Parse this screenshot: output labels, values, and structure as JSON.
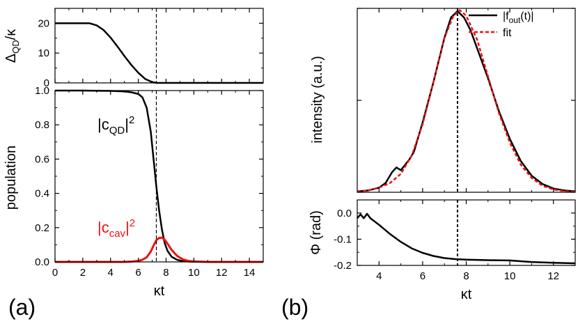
{
  "figure": {
    "label_a": "(a)",
    "label_b": "(b)"
  },
  "chart_data": [
    {
      "id": "a_top",
      "type": "line",
      "ylabel": "Δ_QD/κ",
      "xlim": [
        0,
        15
      ],
      "ylim": [
        0,
        25
      ],
      "yticks": [
        "0",
        "10",
        "20"
      ],
      "vline_x": 7.3,
      "series": [
        {
          "name": "Δ_QD/κ",
          "color": "#000000",
          "x": [
            0,
            1,
            2,
            2.5,
            3,
            3.5,
            4,
            4.5,
            5,
            5.5,
            6,
            6.5,
            7,
            7.3,
            8,
            10,
            15
          ],
          "y": [
            20,
            20,
            20,
            20,
            19.3,
            17.7,
            15.2,
            12.2,
            9.0,
            6.0,
            3.4,
            1.3,
            0.25,
            0,
            0,
            0,
            0
          ]
        }
      ]
    },
    {
      "id": "a_bottom",
      "type": "line",
      "xlabel": "κt",
      "ylabel": "population",
      "xlim": [
        0,
        15
      ],
      "ylim": [
        0,
        1.0
      ],
      "xticks": [
        "0",
        "2",
        "4",
        "6",
        "8",
        "10",
        "12",
        "14"
      ],
      "yticks": [
        "0.0",
        "0.2",
        "0.4",
        "0.6",
        "0.8",
        "1.0"
      ],
      "vline_x": 7.3,
      "annotations": [
        {
          "text_main": "|c",
          "sub": "QD",
          "text_end": "|",
          "sup": "2",
          "color": "#000000"
        },
        {
          "text_main": "|c",
          "sub": "cav",
          "text_end": "|",
          "sup": "2",
          "color": "#ee1111"
        }
      ],
      "series": [
        {
          "name": "|c_QD|^2",
          "color": "#000000",
          "x": [
            0,
            2,
            4,
            5,
            5.5,
            6,
            6.3,
            6.6,
            6.9,
            7.1,
            7.3,
            7.5,
            7.7,
            7.9,
            8.1,
            8.4,
            8.8,
            9.2,
            9.6,
            10,
            11,
            15
          ],
          "y": [
            1.0,
            1.0,
            0.998,
            0.995,
            0.99,
            0.98,
            0.96,
            0.9,
            0.76,
            0.6,
            0.44,
            0.3,
            0.19,
            0.11,
            0.065,
            0.03,
            0.012,
            0.005,
            0.002,
            0.001,
            0,
            0
          ]
        },
        {
          "name": "|c_cav|^2",
          "color": "#ee1111",
          "x": [
            0,
            5,
            5.5,
            6,
            6.3,
            6.6,
            6.9,
            7.1,
            7.3,
            7.5,
            7.7,
            7.9,
            8.1,
            8.4,
            8.8,
            9.2,
            9.6,
            10,
            11,
            15
          ],
          "y": [
            0,
            0,
            0.002,
            0.006,
            0.013,
            0.027,
            0.06,
            0.095,
            0.127,
            0.14,
            0.142,
            0.13,
            0.107,
            0.07,
            0.035,
            0.015,
            0.006,
            0.003,
            0,
            0
          ]
        }
      ]
    },
    {
      "id": "b_top",
      "type": "line",
      "ylabel": "intensity (a.u.)",
      "xlim": [
        3,
        13
      ],
      "ylim": [
        0,
        1.0
      ],
      "vline_x": 7.6,
      "legend": [
        {
          "text": "|f",
          "sub": "out",
          "text_end": "(t)|",
          "style": "solid",
          "color": "#000000"
        },
        {
          "text": "fit",
          "sub": "",
          "text_end": "",
          "style": "dashed",
          "color": "#ee1111"
        }
      ],
      "series": [
        {
          "name": "|f_out(t)|",
          "color": "#000000",
          "x": [
            3,
            3.5,
            4,
            4.3,
            4.6,
            4.8,
            5,
            5.2,
            5.4,
            5.6,
            6,
            6.5,
            7,
            7.3,
            7.6,
            7.9,
            8.2,
            8.6,
            9,
            9.5,
            10,
            10.5,
            11,
            11.5,
            12,
            12.5,
            13
          ],
          "y": [
            0.005,
            0.01,
            0.025,
            0.05,
            0.11,
            0.135,
            0.12,
            0.15,
            0.18,
            0.22,
            0.38,
            0.6,
            0.84,
            0.95,
            0.985,
            0.95,
            0.88,
            0.75,
            0.62,
            0.44,
            0.29,
            0.17,
            0.09,
            0.045,
            0.02,
            0.01,
            0.005
          ]
        },
        {
          "name": "fit",
          "color": "#ee1111",
          "dashed": true,
          "x": [
            3,
            3.5,
            4,
            4.5,
            5,
            5.5,
            6,
            6.5,
            7,
            7.4,
            7.7,
            8,
            8.5,
            9,
            9.5,
            10,
            10.5,
            11,
            11.5,
            12,
            12.5,
            13
          ],
          "y": [
            0.003,
            0.01,
            0.025,
            0.05,
            0.1,
            0.2,
            0.37,
            0.6,
            0.84,
            0.955,
            0.99,
            0.96,
            0.83,
            0.63,
            0.43,
            0.27,
            0.15,
            0.078,
            0.035,
            0.015,
            0.006,
            0.002
          ]
        }
      ]
    },
    {
      "id": "b_bottom",
      "type": "line",
      "xlabel": "κt",
      "ylabel": "Φ (rad)",
      "xlim": [
        3,
        13
      ],
      "ylim": [
        -0.2,
        0.05
      ],
      "xticks": [
        "4",
        "6",
        "8",
        "10",
        "12"
      ],
      "yticks": [
        "-0.2",
        "-0.1",
        "0.0"
      ],
      "vline_x": 7.6,
      "series": [
        {
          "name": "Φ",
          "color": "#000000",
          "x": [
            3,
            3.15,
            3.3,
            3.45,
            3.6,
            4,
            4.5,
            5,
            5.5,
            6,
            6.5,
            7,
            7.5,
            8,
            9,
            10,
            11,
            12,
            13
          ],
          "y": [
            -0.02,
            -0.005,
            -0.02,
            -0.003,
            -0.02,
            -0.045,
            -0.08,
            -0.11,
            -0.135,
            -0.152,
            -0.164,
            -0.172,
            -0.176,
            -0.178,
            -0.18,
            -0.181,
            -0.187,
            -0.19,
            -0.192
          ]
        }
      ]
    }
  ]
}
